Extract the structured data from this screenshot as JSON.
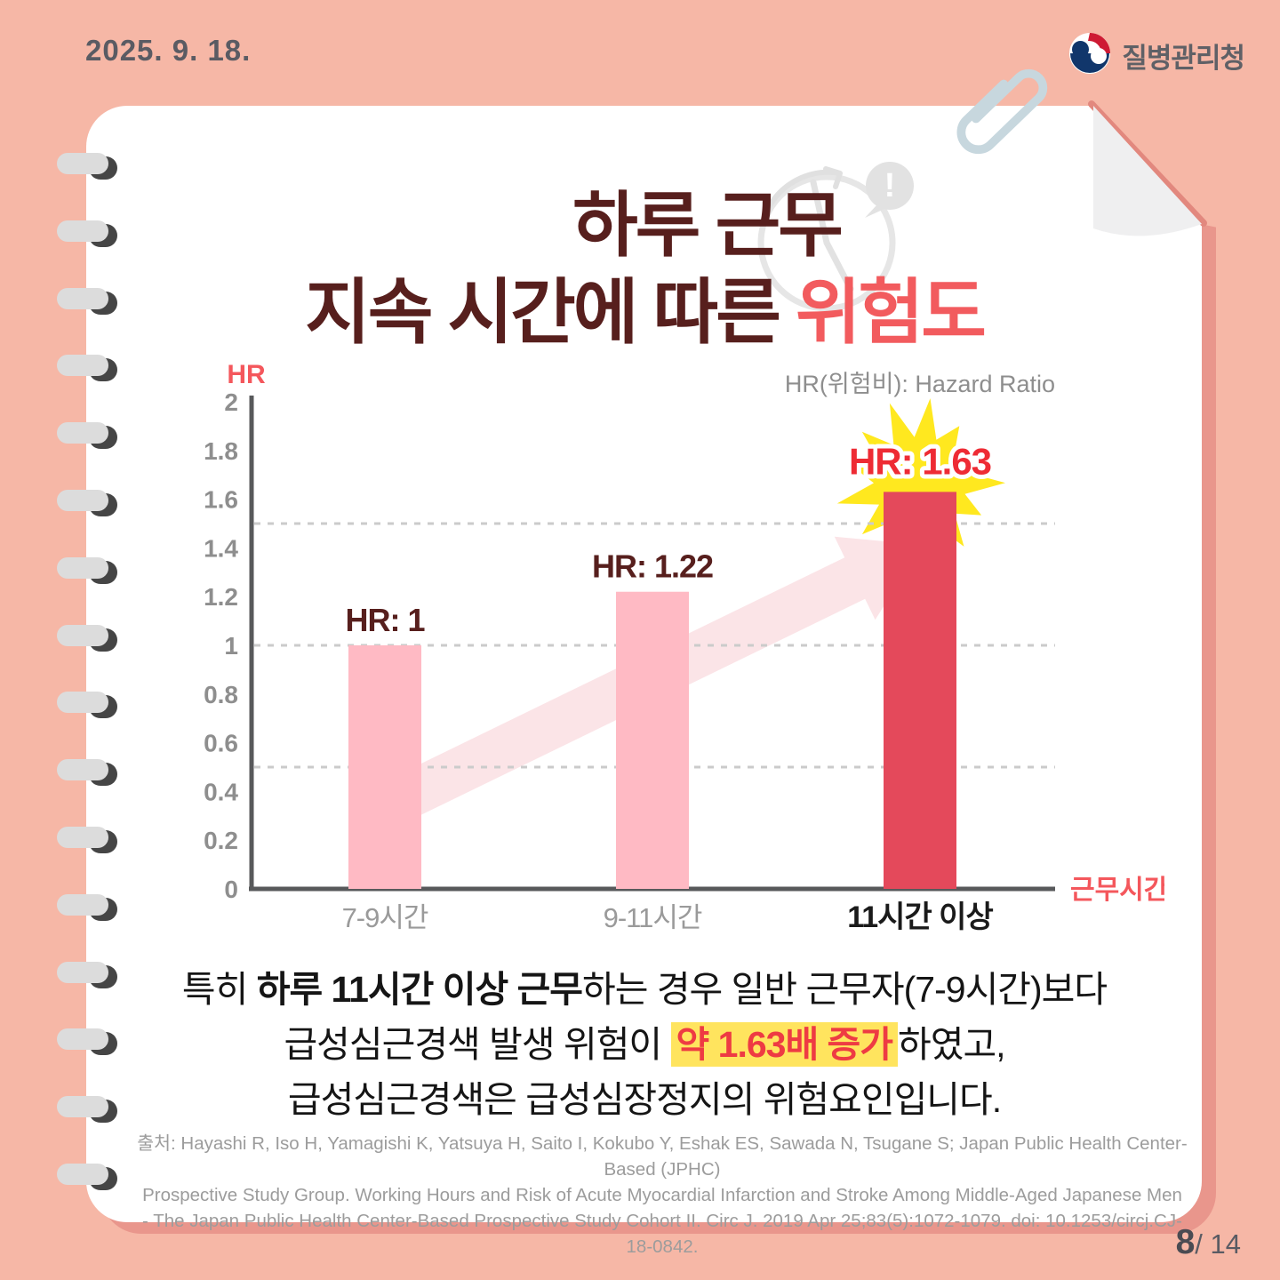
{
  "page": {
    "date": "2025. 9. 18.",
    "number": "8",
    "total": "/ 14"
  },
  "header": {
    "agency_name": "질병관리청"
  },
  "title": {
    "line1": "하루 근무",
    "line2_prefix": "지속 시간에 따른 ",
    "line2_accent": "위험도"
  },
  "chart_data": {
    "type": "bar",
    "title": "하루 근무 지속 시간에 따른 위험도",
    "ylabel": "HR",
    "xlabel": "근무시간",
    "note": "HR(위험비): Hazard Ratio",
    "categories": [
      "7-9시간",
      "9-11시간",
      "11시간 이상"
    ],
    "values": [
      1,
      1.22,
      1.63
    ],
    "value_labels": [
      "HR: 1",
      "HR: 1.22",
      "HR: 1.63"
    ],
    "bar_colors": [
      "#FFBAC4",
      "#FFBAC4",
      "#E4495B"
    ],
    "emphasis_index": 2,
    "ylim": [
      0,
      2
    ],
    "y_ticks": [
      2,
      1.8,
      1.6,
      1.4,
      1.2,
      1,
      0.8,
      0.6,
      0.4,
      0.2,
      0
    ],
    "gridlines": [
      0.5,
      1,
      1.5
    ],
    "grid": "dashed-horizontal",
    "legend_position": "none",
    "accent_colors": {
      "axis_label": "#F4575C",
      "emphasis_text": "#EE2B34",
      "starburst": "#FFE81F",
      "trend_arrow": "#FBE4E7"
    }
  },
  "body": {
    "line1_pre": "특히 ",
    "line1_bold": "하루 11시간 이상 근무",
    "line1_post": "하는 경우 일반 근무자(7-9시간)보다",
    "line2_pre": "급성심근경색 발생 위험이 ",
    "line2_highlight": "약 1.63배 증가",
    "line2_post": "하였고,",
    "line3": "급성심근경색은 급성심장정지의 위험요인입니다."
  },
  "source": {
    "line1": "출처: Hayashi R, Iso H, Yamagishi K, Yatsuya H, Saito I, Kokubo Y, Eshak ES, Sawada N, Tsugane S; Japan Public Health Center-Based (JPHC)",
    "line2": "Prospective Study Group. Working Hours and Risk of Acute Myocardial Infarction and Stroke Among Middle-Aged Japanese Men",
    "line3": "- The Japan Public Health Center-Based Prospective Study Cohort II. Circ J. 2019 Apr 25;83(5):1072-1079. doi: 10.1253/circj.CJ-18-0842."
  }
}
